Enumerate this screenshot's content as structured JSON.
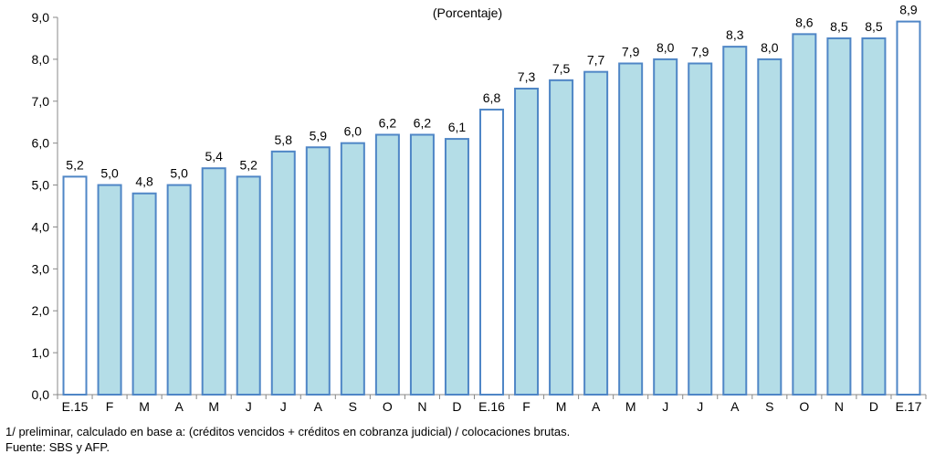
{
  "subtitle": "(Porcentaje)",
  "footnotes": {
    "note": "1/ preliminar, calculado en base a: (créditos vencidos + créditos en cobranza judicial) / colocaciones brutas.",
    "source": "Fuente: SBS  y AFP."
  },
  "colors": {
    "bar_fill": "#b4dde7",
    "bar_highlight_fill": "#ffffff",
    "bar_stroke": "#4f86c6",
    "axis": "#888888"
  },
  "chart_data": {
    "type": "bar",
    "title": "",
    "subtitle": "(Porcentaje)",
    "xlabel": "",
    "ylabel": "",
    "ylim": [
      0,
      9
    ],
    "ytick_step": 1,
    "grid": false,
    "categories": [
      "E.15",
      "F",
      "M",
      "A",
      "M",
      "J",
      "J",
      "A",
      "S",
      "O",
      "N",
      "D",
      "E.16",
      "F",
      "M",
      "A",
      "M",
      "J",
      "J",
      "A",
      "S",
      "O",
      "N",
      "D",
      "E.17"
    ],
    "values": [
      5.2,
      5.0,
      4.8,
      5.0,
      5.4,
      5.2,
      5.8,
      5.9,
      6.0,
      6.2,
      6.2,
      6.1,
      6.8,
      7.3,
      7.5,
      7.7,
      7.9,
      8.0,
      7.9,
      8.3,
      8.0,
      8.6,
      8.5,
      8.5,
      8.9
    ],
    "value_labels": [
      "5,2",
      "5,0",
      "4,8",
      "5,0",
      "5,4",
      "5,2",
      "5,8",
      "5,9",
      "6,0",
      "6,2",
      "6,2",
      "6,1",
      "6,8",
      "7,3",
      "7,5",
      "7,7",
      "7,9",
      "8,0",
      "7,9",
      "8,3",
      "8,0",
      "8,6",
      "8,5",
      "8,5",
      "8,9"
    ],
    "ytick_labels": [
      "0,0",
      "1,0",
      "2,0",
      "3,0",
      "4,0",
      "5,0",
      "6,0",
      "7,0",
      "8,0",
      "9,0"
    ],
    "highlight_categories": [
      "E.15",
      "E.16",
      "E.17"
    ]
  }
}
